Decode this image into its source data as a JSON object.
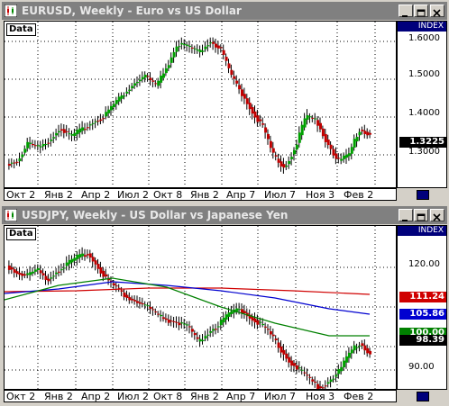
{
  "colors": {
    "up_candle": "#00a000",
    "down_candle": "#c00000",
    "wick": "#000000",
    "title_bg": "#808080",
    "index_bg": "#00007b",
    "ma_red": "#d00000",
    "ma_blue": "#0000d0",
    "ma_green": "#008000"
  },
  "top_window": {
    "title": "EURUSD, Weekly - Euro vs US Dollar",
    "data_label": "Data",
    "index_label": "INDEX",
    "y_ticks": [
      "1.6000",
      "1.5000",
      "1.4000",
      "1.3000"
    ],
    "last_price": "1.3225",
    "x_labels": [
      "Окт 2",
      "Янв 2",
      "Апр 2",
      "Июл 2",
      "Окт 8",
      "Янв 2",
      "Апр 7",
      "Июл 7",
      "Ноя 3",
      "Фев 2"
    ]
  },
  "bottom_window": {
    "title": "USDJPY, Weekly - US Dollar vs Japanese Yen",
    "data_label": "Data",
    "index_label": "INDEX",
    "y_ticks": [
      "120.00",
      "90.00"
    ],
    "tags": [
      {
        "value": "111.24",
        "bg": "#d00000",
        "fg": "#ffffff"
      },
      {
        "value": "105.86",
        "bg": "#0000d0",
        "fg": "#ffffff"
      },
      {
        "value": "100.00",
        "bg": "#008000",
        "fg": "#ffffff"
      },
      {
        "value": "98.39",
        "bg": "#000000",
        "fg": "#ffffff"
      }
    ],
    "x_labels": [
      "Окт 2",
      "Янв 2",
      "Апр 2",
      "Июл 2",
      "Окт 8",
      "Янв 2",
      "Апр 7",
      "Июл 7",
      "Ноя 3",
      "Фев 2"
    ]
  }
}
